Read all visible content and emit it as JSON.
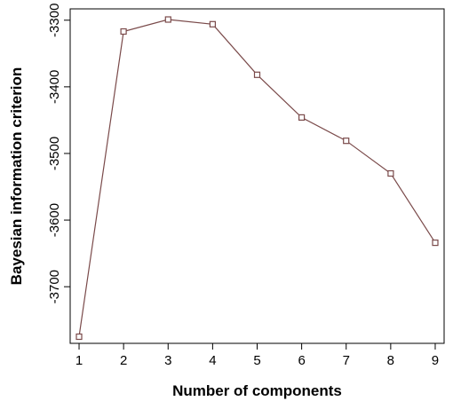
{
  "chart_data": {
    "type": "line",
    "title": "",
    "xlabel": "Number of components",
    "ylabel": "Bayesian information criterion",
    "x": [
      1,
      2,
      3,
      4,
      5,
      6,
      7,
      8,
      9
    ],
    "series": [
      {
        "values": [
          -3775,
          -3317,
          -3299,
          -3306,
          -3382,
          -3446,
          -3481,
          -3530,
          -3634
        ]
      }
    ],
    "xlim": [
      0.8,
      9.2
    ],
    "ylim": [
      -3785,
      -3283
    ],
    "xticks": [
      "1",
      "2",
      "3",
      "4",
      "5",
      "6",
      "7",
      "8",
      "9"
    ],
    "yticks": [
      "-3700",
      "-3600",
      "-3500",
      "-3400",
      "-3300"
    ],
    "ytick_values": [
      -3700,
      -3600,
      -3500,
      -3400,
      -3300
    ],
    "grid": false,
    "legend": "none",
    "line_color": "#7a4a4a",
    "marker_color": "#7a4a4a",
    "marker": "open-square"
  }
}
